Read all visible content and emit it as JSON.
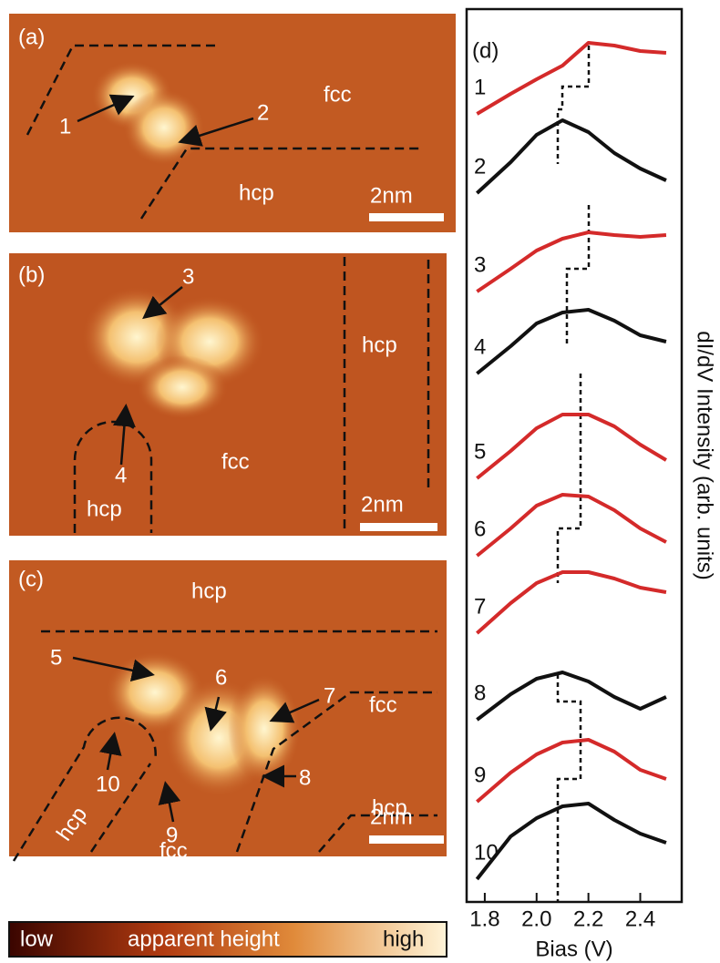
{
  "panel_a": {
    "label": "(a)",
    "texts": [
      "fcc",
      "hcp",
      "1",
      "2"
    ],
    "scale_bar": "2nm"
  },
  "panel_b": {
    "label": "(b)",
    "texts": [
      "3",
      "4",
      "fcc",
      "hcp",
      "hcp"
    ],
    "scale_bar": "2nm"
  },
  "panel_c": {
    "label": "(c)",
    "texts": [
      "hcp",
      "5",
      "6",
      "7",
      "fcc",
      "8",
      "10",
      "9",
      "hcp",
      "hcp",
      "fcc"
    ],
    "scale_bar": "2nm"
  },
  "colorbar": {
    "low": "low",
    "title": "apparent height",
    "high": "high"
  },
  "chart_data": {
    "type": "line",
    "panel_label": "(d)",
    "xlabel": "Bias (V)",
    "ylabel": "dI/dV Intensity (arb. units)",
    "x": [
      1.77,
      1.9,
      2.0,
      2.1,
      2.2,
      2.3,
      2.4,
      2.5
    ],
    "xlim": [
      1.73,
      2.56
    ],
    "xticks": [
      1.8,
      {
        "value": 2.0,
        "label": "2.0"
      },
      2.2,
      2.4
    ],
    "ylim": [
      0,
      980
    ],
    "series": [
      {
        "name": "1",
        "color": "#d42a2a",
        "values": [
          865,
          887,
          903,
          918,
          943,
          940,
          934,
          932
        ]
      },
      {
        "name": "2",
        "color": "#111111",
        "values": [
          778,
          812,
          842,
          858,
          845,
          822,
          805,
          792
        ]
      },
      {
        "name": "3",
        "color": "#d42a2a",
        "values": [
          670,
          695,
          715,
          728,
          735,
          732,
          730,
          732
        ]
      },
      {
        "name": "4",
        "color": "#111111",
        "values": [
          580,
          610,
          635,
          647,
          650,
          638,
          622,
          615
        ]
      },
      {
        "name": "5",
        "color": "#d42a2a",
        "values": [
          465,
          495,
          520,
          535,
          535,
          522,
          502,
          485
        ]
      },
      {
        "name": "6",
        "color": "#d42a2a",
        "values": [
          380,
          410,
          435,
          447,
          445,
          430,
          410,
          395
        ]
      },
      {
        "name": "7",
        "color": "#d42a2a",
        "values": [
          295,
          328,
          350,
          362,
          362,
          355,
          345,
          340
        ]
      },
      {
        "name": "8",
        "color": "#111111",
        "values": [
          200,
          228,
          245,
          252,
          242,
          225,
          212,
          225
        ]
      },
      {
        "name": "9",
        "color": "#d42a2a",
        "values": [
          110,
          142,
          162,
          175,
          178,
          165,
          145,
          135
        ]
      },
      {
        "name": "10",
        "color": "#111111",
        "values": [
          25,
          72,
          92,
          105,
          108,
          90,
          75,
          65
        ]
      }
    ]
  }
}
